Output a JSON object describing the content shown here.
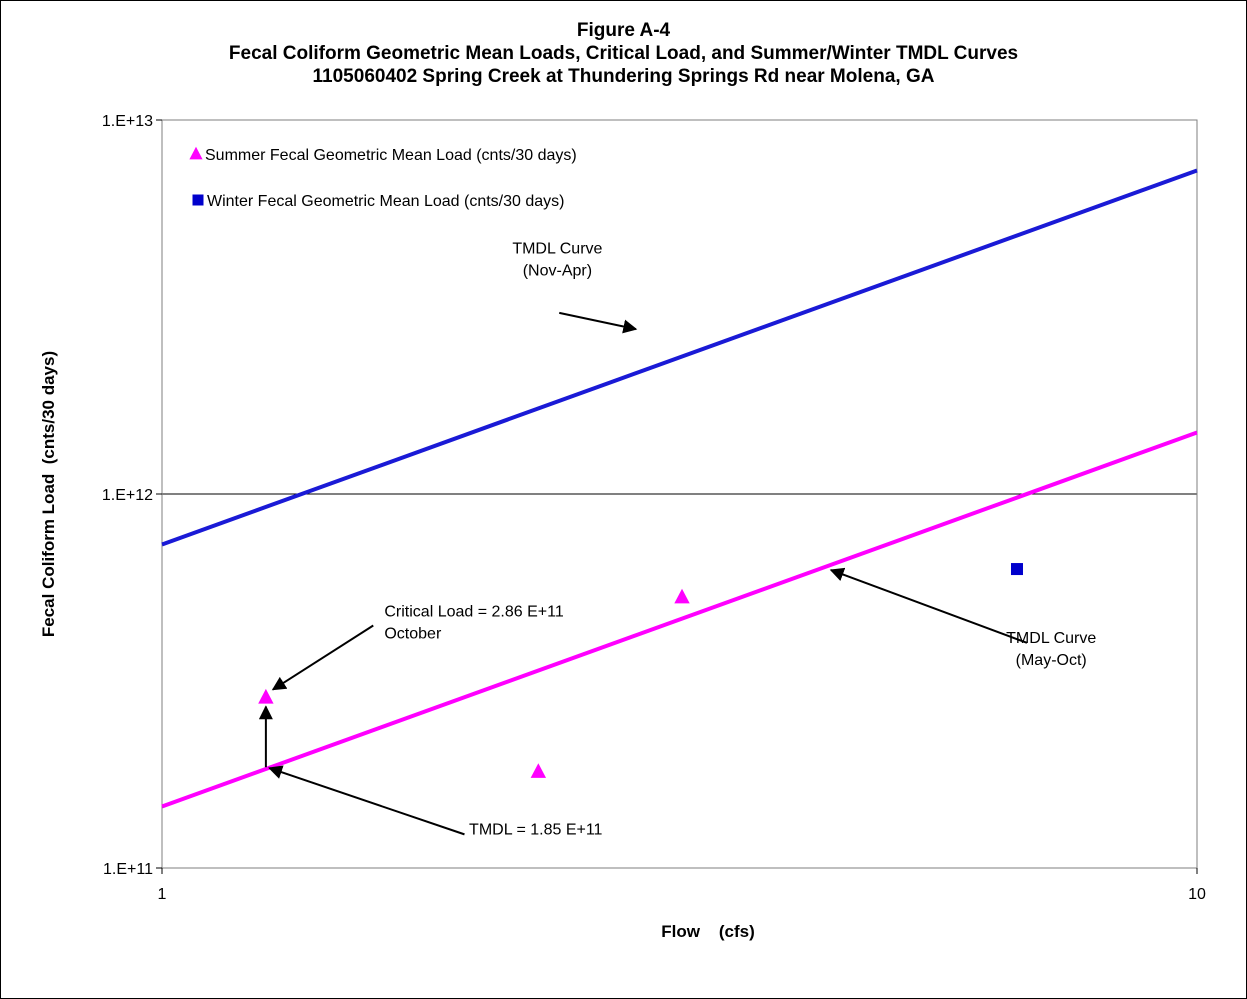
{
  "chart_data": {
    "type": "scatter",
    "title": [
      "Figure A-4",
      "Fecal Coliform Geometric Mean Loads, Critical Load, and Summer/Winter TMDL Curves",
      "1105060402 Spring Creek at Thundering Springs Rd near Molena, GA"
    ],
    "xlabel": "Flow    (cfs)",
    "ylabel": "Fecal Coliform Load  (cnts/30 days)",
    "x_scale": "log",
    "y_scale": "log",
    "xlim": [
      1,
      10
    ],
    "ylim": [
      100000000000,
      10000000000000
    ],
    "x_ticks": [
      {
        "value": 1,
        "label": "1"
      },
      {
        "value": 10,
        "label": "10"
      }
    ],
    "y_ticks": [
      {
        "value": 100000000000,
        "label": "1.E+11"
      },
      {
        "value": 1000000000000,
        "label": "1.E+12"
      },
      {
        "value": 10000000000000,
        "label": "1.E+13"
      }
    ],
    "grid": "horizontal major",
    "legend_position": "top-left",
    "colors": {
      "summer": "#ff00ff",
      "winter": "#0000cc",
      "winter_line": "#1a1ad6",
      "summer_line": "#ff00ff"
    },
    "series": [
      {
        "name": "Summer Fecal Geometric Mean Load (cnts/30 days)",
        "marker": "triangle",
        "points": [
          {
            "x": 1.26,
            "y": 286000000000
          },
          {
            "x": 2.31,
            "y": 181000000000
          },
          {
            "x": 3.18,
            "y": 530000000000
          }
        ]
      },
      {
        "name": "Winter Fecal Geometric Mean Load (cnts/30 days)",
        "marker": "square",
        "points": [
          {
            "x": 6.7,
            "y": 630000000000
          }
        ]
      }
    ],
    "lines": [
      {
        "key": "winter_curve",
        "x": [
          1,
          10
        ],
        "y": [
          733000000000,
          7330000000000
        ]
      },
      {
        "key": "summer_curve",
        "x": [
          1,
          10
        ],
        "y": [
          146000000000,
          1460000000000
        ]
      }
    ],
    "annotations": [
      {
        "key": "winter_curve_label",
        "lines": [
          "TMDL Curve",
          "(Nov-Apr)"
        ],
        "tx": 2.41,
        "ty": 4400000000000,
        "ax": 2.42,
        "ay": 3050000000000,
        "hx": 2.87,
        "hy": 2760000000000
      },
      {
        "key": "summer_curve_label",
        "lines": [
          "TMDL Curve",
          "(May-Oct)"
        ],
        "tx": 7.23,
        "ty": 400000000000,
        "ax": 6.85,
        "ay": 400000000000,
        "hx": 4.43,
        "hy": 626000000000
      },
      {
        "key": "critical_label",
        "lines": [
          "Critical Load = 2.86 E+11",
          "October"
        ],
        "tx": 1.64,
        "ty": 470000000000,
        "ax": 1.6,
        "ay": 445000000000,
        "hx": 1.28,
        "hy": 300000000000
      },
      {
        "key": "tmdl_label",
        "lines": [
          "TMDL = 1.85 E+11"
        ],
        "tx": 1.98,
        "ty": 123000000000,
        "ax": 1.96,
        "ay": 123000000000,
        "hx": 1.27,
        "hy": 185000000000
      }
    ],
    "critical_connector": {
      "x": 1.26,
      "y_from": 186000000000,
      "y_to": 270000000000
    }
  }
}
